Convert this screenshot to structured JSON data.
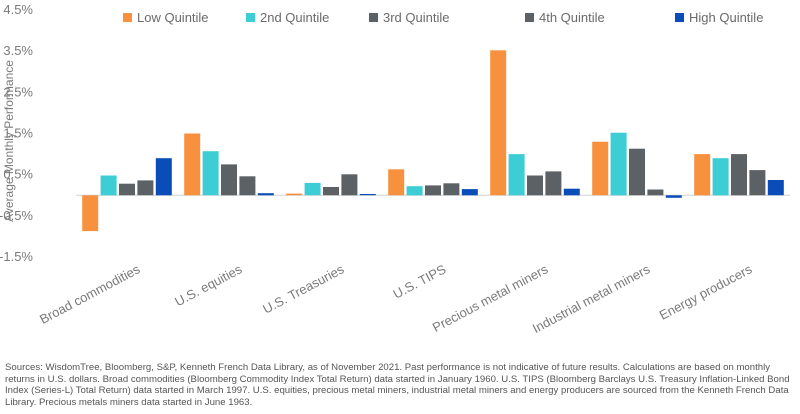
{
  "chart_data": {
    "type": "bar",
    "title": "",
    "xlabel": "",
    "ylabel": "Average Monthly Performance",
    "ylim": [
      -1.5,
      4.5
    ],
    "yticks": [
      -1.5,
      -0.5,
      0.5,
      1.5,
      2.5,
      3.5,
      4.5
    ],
    "yticks_labels": [
      "-1.5%",
      "-0.5%",
      "0.5%",
      "1.5%",
      "2.5%",
      "3.5%",
      "4.5%"
    ],
    "grid": false,
    "legend": "top",
    "categories": [
      "Broad commodities",
      "U.S. equities",
      "U.S. Treasuries",
      "U.S. TIPS",
      "Precious metal miners",
      "Industrial metal miners",
      "Energy producers"
    ],
    "series": [
      {
        "name": "Low Quintile",
        "color": "#F7913D",
        "values": [
          -0.87,
          1.5,
          0.04,
          0.63,
          3.52,
          1.3,
          1.0
        ]
      },
      {
        "name": "2nd Quintile",
        "color": "#3DCDD4",
        "values": [
          0.48,
          1.07,
          0.3,
          0.22,
          1.0,
          1.52,
          0.9
        ]
      },
      {
        "name": "3rd Quintile",
        "color": "#5C6166",
        "values": [
          0.28,
          0.75,
          0.2,
          0.24,
          0.48,
          1.13,
          1.0
        ]
      },
      {
        "name": "4th Quintile",
        "color": "#5C6166",
        "values": [
          0.36,
          0.46,
          0.51,
          0.29,
          0.58,
          0.14,
          0.61
        ]
      },
      {
        "name": "High Quintile",
        "color": "#0A4DB8",
        "values": [
          0.9,
          0.05,
          0.03,
          0.15,
          0.16,
          -0.06,
          0.37
        ]
      }
    ]
  },
  "footnote": "Sources: WisdomTree, Bloomberg, S&P, Kenneth French Data Library, as of November 2021. Past performance is not indicative of future results. Calculations are based on monthly returns in U.S. dollars. Broad commodities (Bloomberg Commodity Index Total Return) data started in January 1960. U.S. TIPS (Bloomberg Barclays U.S. Treasury Inflation-Linked Bond Index (Series-L) Total Return) data started in March 1997. U.S. equities, precious metal miners, industrial metal miners and energy producers are sourced from the Kenneth French Data Library. Precious metals miners data started in June 1963."
}
